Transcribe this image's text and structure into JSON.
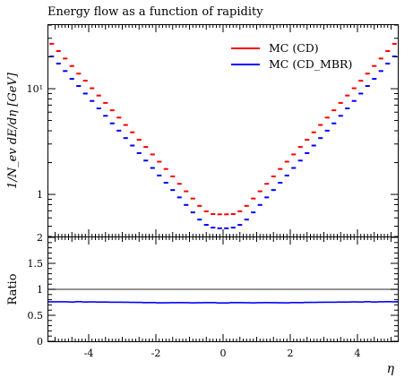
{
  "chart_data": [
    {
      "type": "step",
      "title": "Energy flow as a function of rapidity",
      "xlabel": "",
      "ylabel": "1/N_ev dE/dη [GeV]",
      "xlim": [
        -5.2,
        5.2
      ],
      "ylim": [
        0.4,
        40
      ],
      "yscale": "log",
      "y_ticks": [
        1,
        10
      ],
      "y_tick_labels": [
        "1",
        "10¹"
      ],
      "legend": {
        "placement": "top-right"
      },
      "bin_width": 0.2,
      "x": [
        -5.1,
        -4.9,
        -4.7,
        -4.5,
        -4.3,
        -4.1,
        -3.9,
        -3.7,
        -3.5,
        -3.3,
        -3.1,
        -2.9,
        -2.7,
        -2.5,
        -2.3,
        -2.1,
        -1.9,
        -1.7,
        -1.5,
        -1.3,
        -1.1,
        -0.9,
        -0.7,
        -0.5,
        -0.3,
        -0.1,
        0.1,
        0.3,
        0.5,
        0.7,
        0.9,
        1.1,
        1.3,
        1.5,
        1.7,
        1.9,
        2.1,
        2.3,
        2.5,
        2.7,
        2.9,
        3.1,
        3.3,
        3.5,
        3.7,
        3.9,
        4.1,
        4.3,
        4.5,
        4.7,
        4.9,
        5.1
      ],
      "series": [
        {
          "name": "MC (CD)",
          "color": "#ff0000",
          "values": [
            26.6,
            22.7,
            19.3,
            16.4,
            13.9,
            11.9,
            10.1,
            8.62,
            7.34,
            6.25,
            5.33,
            4.54,
            3.87,
            3.29,
            2.81,
            2.39,
            2.04,
            1.74,
            1.48,
            1.26,
            1.07,
            0.914,
            0.779,
            0.692,
            0.652,
            0.648,
            0.648,
            0.652,
            0.692,
            0.779,
            0.914,
            1.07,
            1.26,
            1.48,
            1.74,
            2.04,
            2.39,
            2.81,
            3.29,
            3.87,
            4.54,
            5.33,
            6.25,
            7.34,
            8.62,
            10.1,
            11.9,
            13.9,
            16.4,
            19.3,
            22.7,
            26.6
          ]
        },
        {
          "name": "MC (CD_MBR)",
          "color": "#0000ff",
          "values": [
            20.2,
            17.3,
            14.7,
            12.4,
            10.6,
            9.0,
            7.66,
            6.51,
            5.54,
            4.7,
            4.01,
            3.41,
            2.9,
            2.46,
            2.09,
            1.78,
            1.51,
            1.29,
            1.1,
            0.937,
            0.795,
            0.676,
            0.578,
            0.515,
            0.485,
            0.478,
            0.478,
            0.485,
            0.515,
            0.578,
            0.676,
            0.795,
            0.937,
            1.1,
            1.29,
            1.51,
            1.78,
            2.09,
            2.46,
            2.9,
            3.41,
            4.01,
            4.7,
            5.54,
            6.51,
            7.66,
            9.0,
            10.6,
            12.4,
            14.7,
            17.3,
            20.2
          ]
        }
      ]
    },
    {
      "type": "step",
      "title": "",
      "xlabel": "η",
      "ylabel": "Ratio",
      "xlim": [
        -5.2,
        5.2
      ],
      "ylim": [
        0,
        2
      ],
      "x_ticks": [
        -4,
        -2,
        0,
        2,
        4
      ],
      "x_tick_labels": [
        "-4",
        "-2",
        "0",
        "2",
        "4"
      ],
      "y_ticks": [
        0,
        0.5,
        1,
        1.5,
        2
      ],
      "y_tick_labels": [
        "0",
        "0.5",
        "1",
        "1.5",
        "2"
      ],
      "reference_line": 1,
      "series": [
        {
          "name": "MC (CD_MBR)",
          "color": "#0000ff",
          "values": [
            0.76,
            0.76,
            0.76,
            0.756,
            0.762,
            0.756,
            0.758,
            0.755,
            0.755,
            0.752,
            0.752,
            0.751,
            0.749,
            0.748,
            0.744,
            0.745,
            0.74,
            0.741,
            0.743,
            0.744,
            0.743,
            0.74,
            0.742,
            0.744,
            0.744,
            0.738,
            0.738,
            0.744,
            0.744,
            0.742,
            0.74,
            0.743,
            0.744,
            0.743,
            0.741,
            0.74,
            0.745,
            0.744,
            0.748,
            0.749,
            0.751,
            0.752,
            0.752,
            0.755,
            0.755,
            0.758,
            0.756,
            0.762,
            0.756,
            0.76,
            0.762,
            0.76
          ]
        }
      ]
    }
  ]
}
